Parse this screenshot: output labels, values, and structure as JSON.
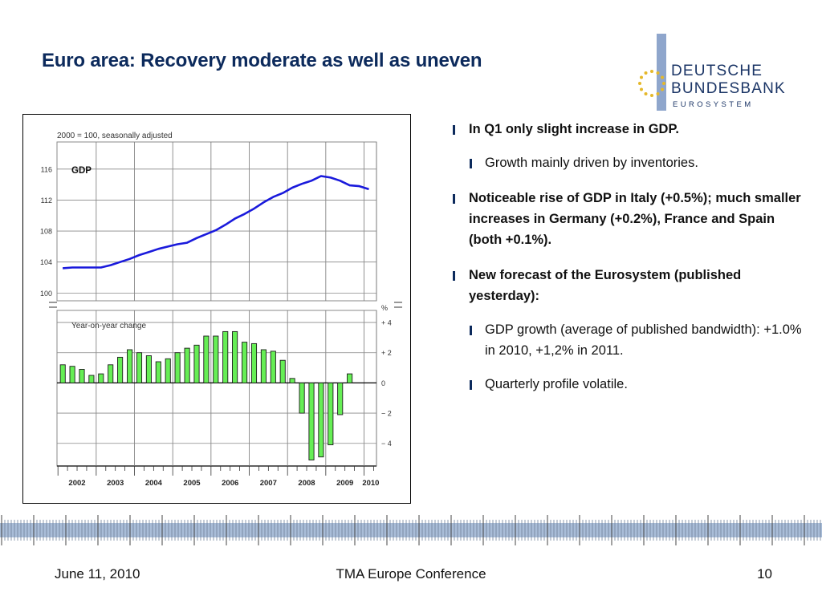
{
  "slide": {
    "title": "Euro area: Recovery moderate as well as uneven"
  },
  "logo": {
    "line1": "DEUTSCHE",
    "line2": "BUNDESBANK",
    "line3": "EUROSYSTEM",
    "colors": {
      "bar": "#8fa6cc",
      "stars": "#e5b82a",
      "text": "#1b3566"
    }
  },
  "bullets": [
    {
      "level": 1,
      "text": "In Q1 only slight increase in GDP."
    },
    {
      "level": 2,
      "text": "Growth mainly driven by inventories."
    },
    {
      "level": 1,
      "text": "Noticeable rise of GDP in Italy (+0.5%); much smaller increases in Germany (+0.2%), France and Spain (both +0.1%)."
    },
    {
      "level": 1,
      "text": "New forecast of the Eurosystem (published yesterday):"
    },
    {
      "level": 2,
      "text": "GDP growth (average of published bandwidth): +1.0% in 2010, +1,2% in 2011."
    },
    {
      "level": 2,
      "text": "Quarterly profile volatile."
    }
  ],
  "footer": {
    "date": "June 11, 2010",
    "conference": "TMA Europe Conference",
    "page": "10"
  },
  "chart_data": [
    {
      "type": "line",
      "panel": "top",
      "note": "2000 = 100, seasonally adjusted",
      "series": [
        {
          "name": "GDP",
          "color": "#1a1adc",
          "x": [
            2002.0,
            2002.25,
            2002.5,
            2002.75,
            2003.0,
            2003.25,
            2003.5,
            2003.75,
            2004.0,
            2004.25,
            2004.5,
            2004.75,
            2005.0,
            2005.25,
            2005.5,
            2005.75,
            2006.0,
            2006.25,
            2006.5,
            2006.75,
            2007.0,
            2007.25,
            2007.5,
            2007.75,
            2008.0,
            2008.25,
            2008.5,
            2008.75,
            2009.0,
            2009.25,
            2009.5,
            2009.75,
            2010.0
          ],
          "values": [
            103.2,
            103.3,
            103.3,
            103.3,
            103.3,
            103.6,
            104.0,
            104.4,
            104.9,
            105.3,
            105.7,
            106.0,
            106.3,
            106.5,
            107.1,
            107.6,
            108.1,
            108.8,
            109.6,
            110.2,
            110.9,
            111.7,
            112.4,
            112.9,
            113.6,
            114.1,
            114.5,
            115.1,
            114.9,
            114.5,
            113.9,
            113.8,
            113.4
          ]
        }
      ],
      "x_ticks": [
        "2002",
        "2003",
        "2004",
        "2005",
        "2006",
        "2007",
        "2008",
        "2009",
        "2010"
      ],
      "y_ticks": [
        100,
        104,
        108,
        112,
        116
      ],
      "ylim": [
        99.0,
        119.5
      ],
      "grid": true
    },
    {
      "type": "bar",
      "panel": "bottom",
      "label": "Year-on-year change",
      "unit": "%",
      "series": [
        {
          "name": "Year-on-year change",
          "color": "#66ee55",
          "x": [
            2002.0,
            2002.25,
            2002.5,
            2002.75,
            2003.0,
            2003.25,
            2003.5,
            2003.75,
            2004.0,
            2004.25,
            2004.5,
            2004.75,
            2005.0,
            2005.25,
            2005.5,
            2005.75,
            2006.0,
            2006.25,
            2006.5,
            2006.75,
            2007.0,
            2007.25,
            2007.5,
            2007.75,
            2008.0,
            2008.25,
            2008.5,
            2008.75,
            2009.0,
            2009.25,
            2009.5,
            2009.75,
            2010.0
          ],
          "values": [
            1.2,
            1.1,
            0.9,
            0.5,
            0.6,
            1.2,
            1.7,
            2.2,
            2.0,
            1.8,
            1.4,
            1.6,
            2.0,
            2.3,
            2.5,
            3.1,
            3.1,
            3.4,
            3.4,
            2.7,
            2.6,
            2.2,
            2.1,
            1.5,
            0.3,
            -2.0,
            -5.1,
            -4.9,
            -4.1,
            -2.1,
            0.6,
            0,
            0
          ]
        }
      ],
      "y_ticks": [
        "+ 4",
        "+ 2",
        "0",
        "− 2",
        "− 4"
      ],
      "ylim": [
        -5.5,
        4.8
      ],
      "grid": true
    }
  ]
}
